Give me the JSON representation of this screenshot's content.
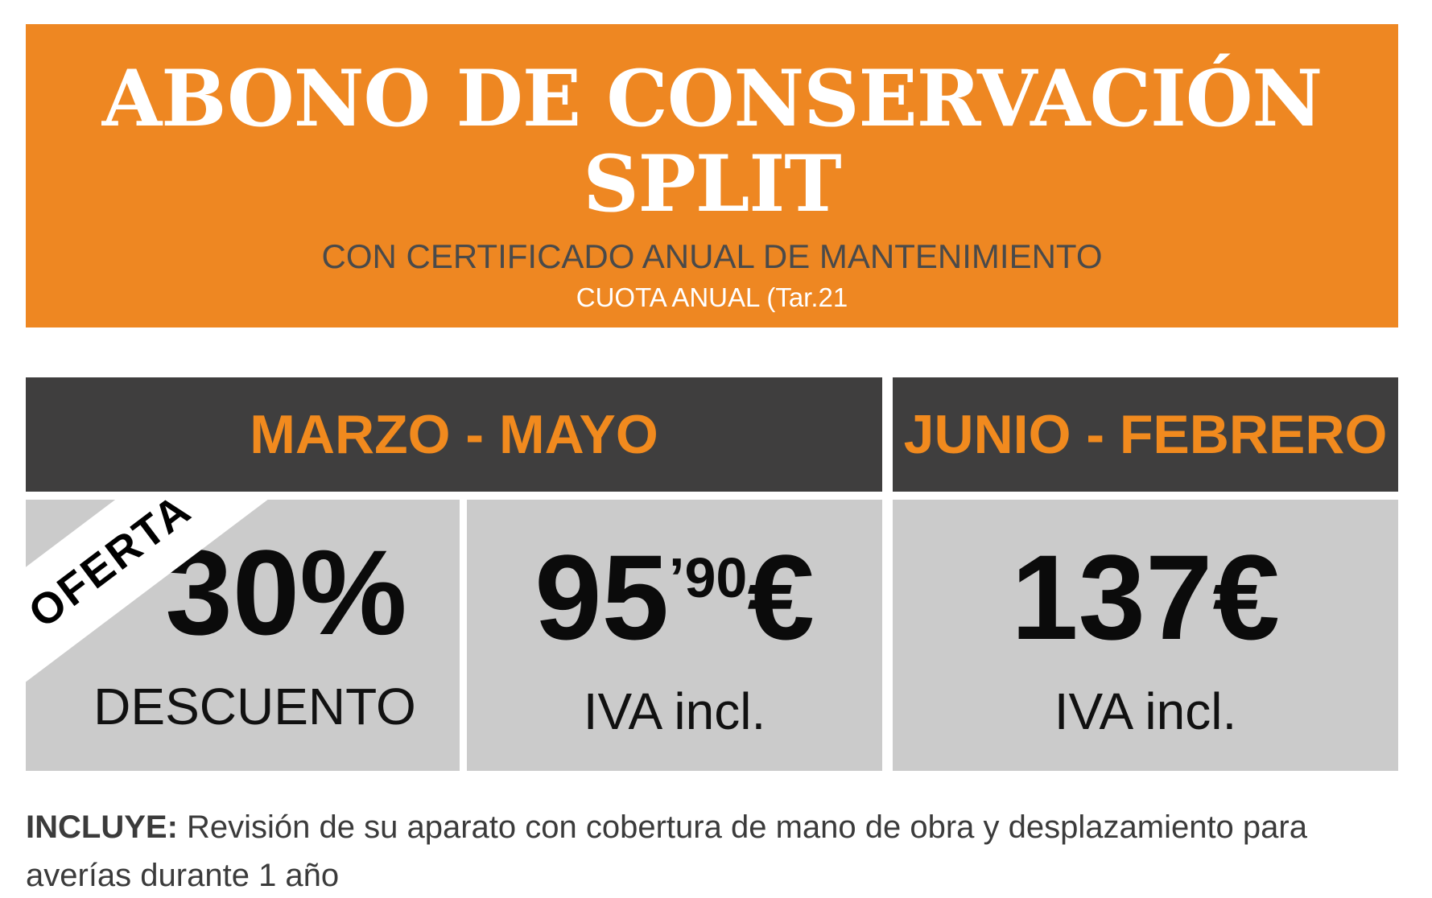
{
  "banner": {
    "title_line1": "ABONO DE CONSERVACIÓN",
    "title_line2": "SPLIT",
    "subtitle": "CON CERTIFICADO ANUAL DE MANTENIMIENTO",
    "note": "CUOTA ANUAL (Tar.21"
  },
  "season_headers": {
    "left": "MARZO - MAYO",
    "right": "JUNIO - FEBRERO"
  },
  "offers": {
    "discount": {
      "ribbon": "OFERTA",
      "value": "30%",
      "label": "DESCUENTO"
    },
    "price_early": {
      "main": "95",
      "sup": "’90",
      "currency": "€",
      "label": "IVA incl."
    },
    "price_regular": {
      "main": "137",
      "currency": "€",
      "label": "IVA incl."
    }
  },
  "includes": {
    "label": "INCLUYE:",
    "line1": " Revisión de su aparato con cobertura de mano de obra y desplazamiento para",
    "line2": "averías durante 1 año"
  },
  "colors": {
    "banner_bg": "#EE8722",
    "bar_bg": "#3F3E3E",
    "box_bg": "#CBCBCB",
    "accent_orange_text": "#F18A1E",
    "title_text": "#FFFFFF",
    "subtitle_text": "#4A4A4A",
    "body_text": "#3B3B3B",
    "price_text": "#0B0B0B",
    "ribbon_bg": "#FFFFFF",
    "ribbon_text": "#000000"
  }
}
